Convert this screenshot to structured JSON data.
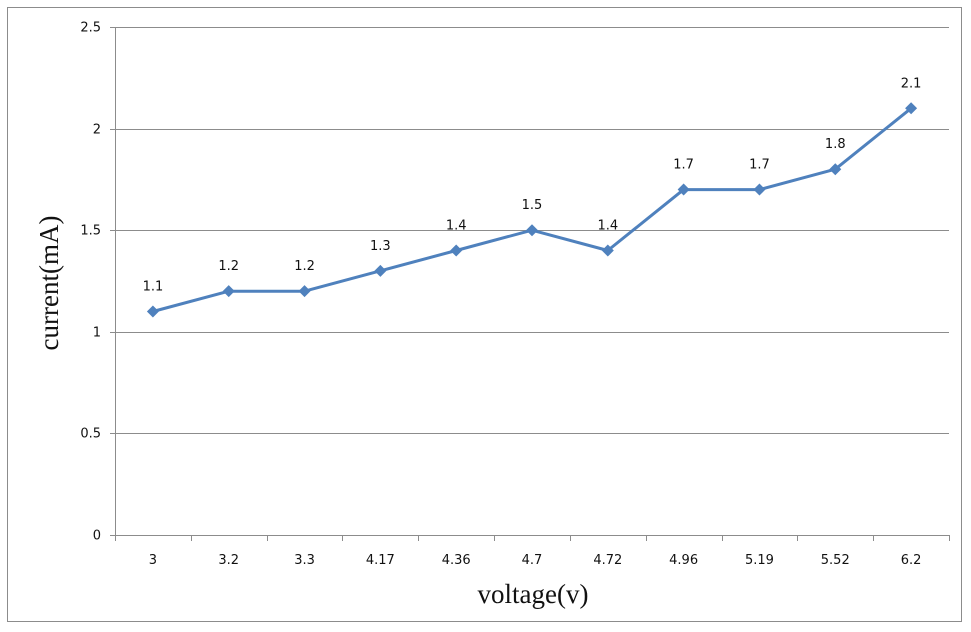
{
  "chart_data": {
    "type": "line",
    "categories": [
      "3",
      "3.2",
      "3.3",
      "4.17",
      "4.36",
      "4.7",
      "4.72",
      "4.96",
      "5.19",
      "5.52",
      "6.2"
    ],
    "series": [
      {
        "values": [
          1.1,
          1.2,
          1.2,
          1.3,
          1.4,
          1.5,
          1.4,
          1.7,
          1.7,
          1.8,
          2.1
        ],
        "color": "#4f81bd",
        "marker": "diamond",
        "data_labels": [
          "1.1",
          "1.2",
          "1.2",
          "1.3",
          "1.4",
          "1.5",
          "1.4",
          "1.7",
          "1.7",
          "1.8",
          "2.1"
        ]
      }
    ],
    "y_ticks": [
      "0",
      "0.5",
      "1",
      "1.5",
      "2",
      "2.5"
    ],
    "y_tick_values": [
      0,
      0.5,
      1,
      1.5,
      2,
      2.5
    ],
    "ylim": [
      0,
      2.5
    ],
    "xlabel": "voltage(v)",
    "ylabel": "current(mA)",
    "grid": "horizontal",
    "legend": "none"
  }
}
